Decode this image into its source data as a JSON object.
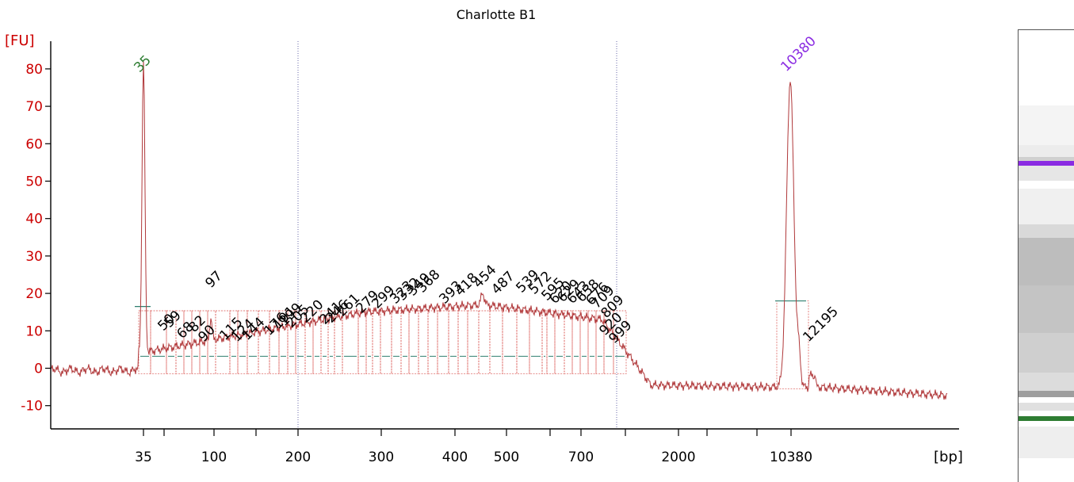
{
  "chart_data": {
    "type": "line",
    "title": "Charlotte B1",
    "ylabel": "[FU]",
    "xlabel": "[bp]",
    "ylim": [
      -15,
      85
    ],
    "yticks": [
      -10,
      0,
      10,
      20,
      30,
      40,
      50,
      60,
      70,
      80
    ],
    "x_ticks": [
      "35",
      "100",
      "200",
      "300",
      "400",
      "500",
      "700",
      "2000",
      "10380"
    ],
    "colors": {
      "trace": "#b0383a",
      "axis": "#cc0000",
      "lower_marker": "#2e7d32",
      "upper_marker": "#8a2be2",
      "baseline": "#2f7f6f",
      "text": "#000000"
    },
    "marker_labels": [
      {
        "label": "35",
        "color": "#2e7d32",
        "peak": 77.5
      },
      {
        "label": "10380",
        "color": "#8a2be2",
        "peak": 77.5
      }
    ],
    "peak_labels": [
      "50",
      "59",
      "68",
      "82",
      "90",
      "97",
      "115",
      "124",
      "144",
      "176",
      "191",
      "199",
      "205",
      "220",
      "241",
      "246",
      "261",
      "279",
      "299",
      "323",
      "332",
      "349",
      "368",
      "393",
      "418",
      "454",
      "487",
      "539",
      "572",
      "595",
      "620",
      "629",
      "643",
      "658",
      "676",
      "709",
      "809",
      "920",
      "999",
      "12195"
    ]
  }
}
